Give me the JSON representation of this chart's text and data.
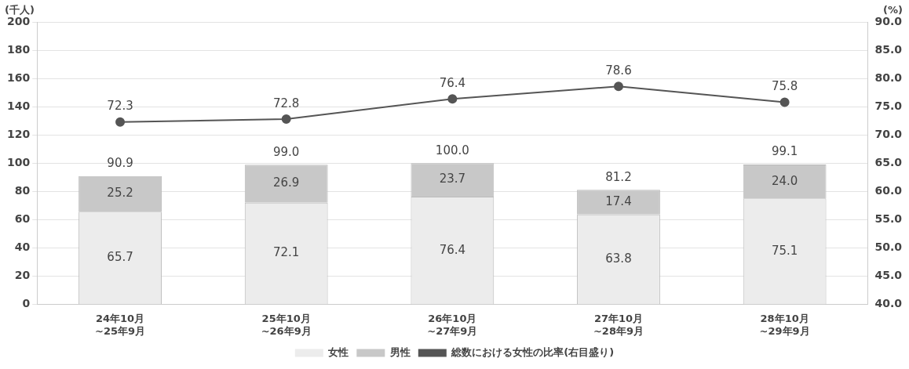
{
  "chart_data": {
    "type": "bar",
    "stacked": true,
    "categories": [
      "24年10月\n~25年9月",
      "25年10月\n~26年9月",
      "26年10月\n~27年9月",
      "27年10月\n~28年9月",
      "28年10月\n~29年9月"
    ],
    "series": [
      {
        "name": "女性",
        "color": "#ececec",
        "values": [
          65.7,
          72.1,
          76.4,
          63.8,
          75.1
        ],
        "value_labels": [
          "65.7",
          "72.1",
          "76.4",
          "63.8",
          "75.1"
        ]
      },
      {
        "name": "男性",
        "color": "#c8c8c8",
        "values": [
          25.2,
          26.9,
          23.7,
          17.4,
          24.0
        ],
        "value_labels": [
          "25.2",
          "26.9",
          "23.7",
          "17.4",
          "24.0"
        ]
      },
      {
        "name": "総数における女性の比率(右目盛り)",
        "type": "line",
        "axis": "y2",
        "color": "#555555",
        "marker": "circle",
        "values": [
          72.3,
          72.8,
          76.4,
          78.6,
          75.8
        ],
        "value_labels": [
          "72.3",
          "72.8",
          "76.4",
          "78.6",
          "75.8"
        ]
      }
    ],
    "totals": [
      "90.9",
      "99.0",
      "100.0",
      "81.2",
      "99.1"
    ],
    "ylabel": "(千人)",
    "y2label": "(%)",
    "ylim": [
      0,
      200
    ],
    "yticks": [
      0,
      20,
      40,
      60,
      80,
      100,
      120,
      140,
      160,
      180,
      200
    ],
    "y2lim": [
      40,
      90
    ],
    "y2ticks": [
      {
        "value": 40,
        "label": "40.0"
      },
      {
        "value": 45,
        "label": "45.0"
      },
      {
        "value": 50,
        "label": "50.0"
      },
      {
        "value": 55,
        "label": "55.0"
      },
      {
        "value": 60,
        "label": "60.0"
      },
      {
        "value": 65,
        "label": "65.0"
      },
      {
        "value": 70,
        "label": "70.0"
      },
      {
        "value": 75,
        "label": "75.0"
      },
      {
        "value": 80,
        "label": "80.0"
      },
      {
        "value": 85,
        "label": "85.0"
      },
      {
        "value": 90,
        "label": "90.0"
      }
    ],
    "grid": "y",
    "legend": "bottom"
  }
}
